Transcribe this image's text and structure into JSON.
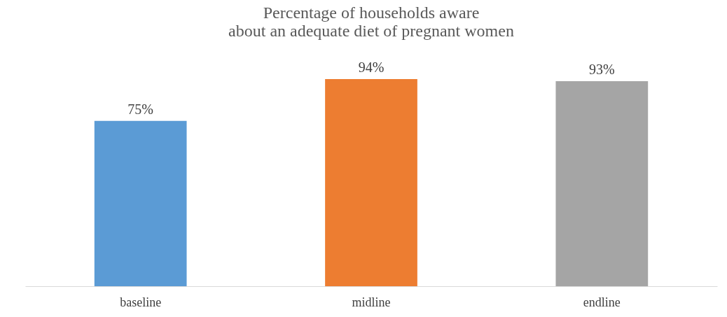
{
  "chart_data": {
    "type": "bar",
    "title": "Percentage of households aware\nabout an adequate diet of pregnant women",
    "categories": [
      "baseline",
      "midline",
      "endline"
    ],
    "values": [
      75,
      94,
      93
    ],
    "colors": [
      "#5b9bd5",
      "#ed7d31",
      "#a5a5a5"
    ],
    "value_labels": [
      "75%",
      "94%",
      "93%"
    ],
    "tick_labels": "x",
    "grid": false
  }
}
